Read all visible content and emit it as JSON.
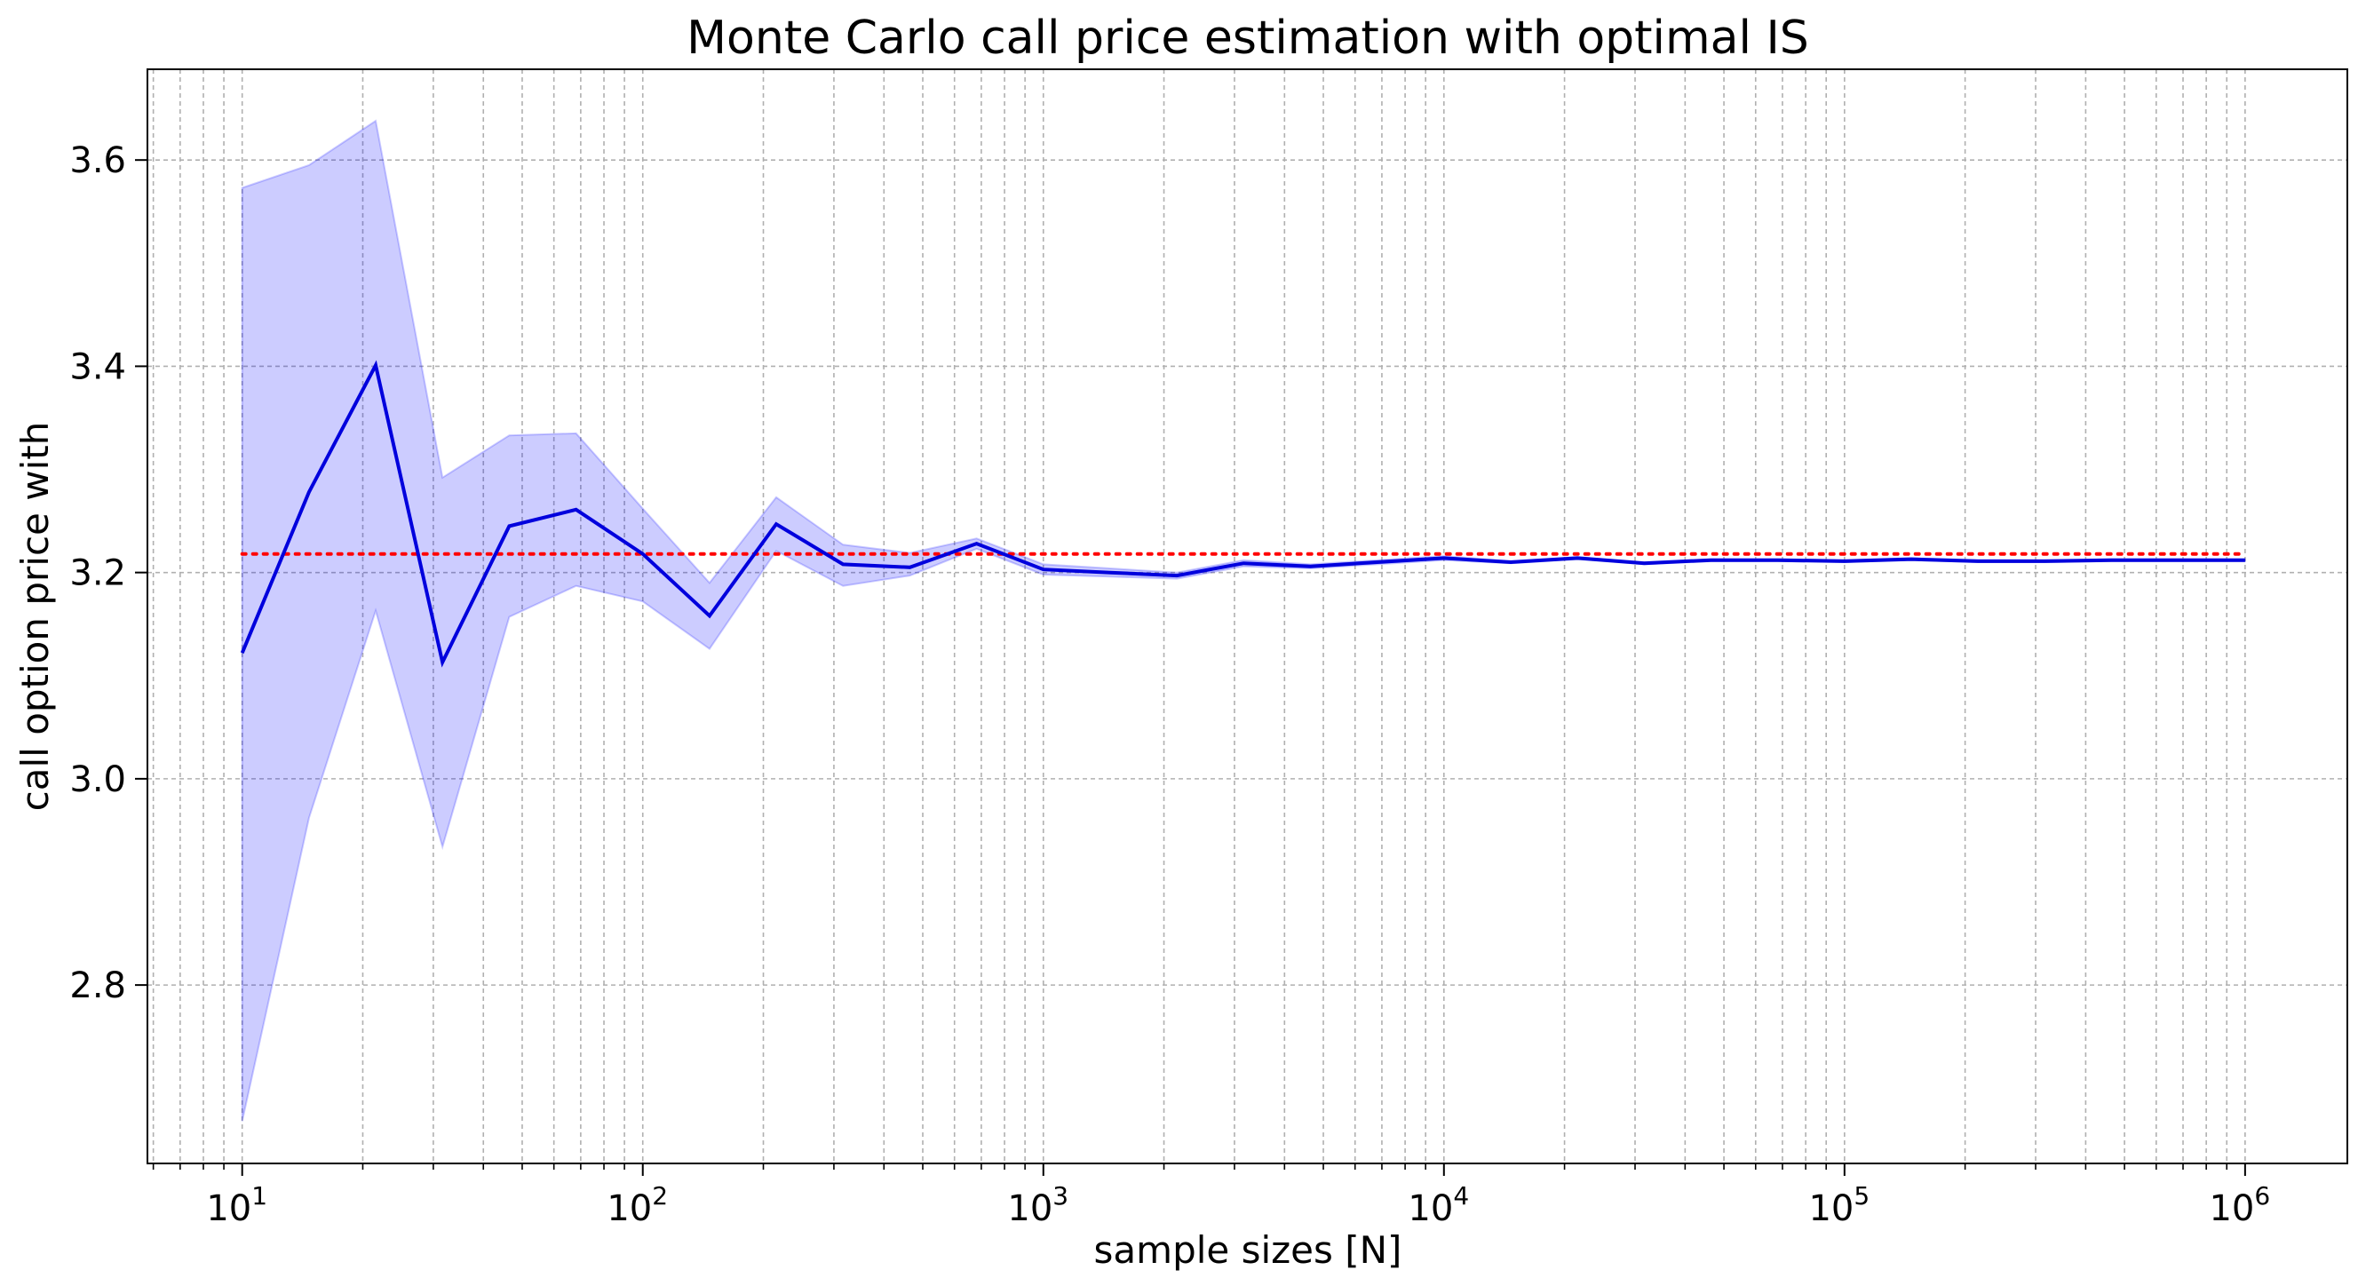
{
  "chart_data": {
    "type": "line",
    "title": "Monte Carlo call price estimation with optimal IS",
    "xlabel": "sample sizes [N]",
    "ylabel": "call option price with",
    "xscale": "log",
    "xlim": [
      5.8,
      1800000
    ],
    "ylim": [
      2.627,
      3.688
    ],
    "grid": true,
    "x_ticks": [
      {
        "base": "10",
        "exp": "1",
        "value": 10
      },
      {
        "base": "10",
        "exp": "2",
        "value": 100
      },
      {
        "base": "10",
        "exp": "3",
        "value": 1000
      },
      {
        "base": "10",
        "exp": "4",
        "value": 10000
      },
      {
        "base": "10",
        "exp": "5",
        "value": 100000
      },
      {
        "base": "10",
        "exp": "6",
        "value": 1000000
      }
    ],
    "y_ticks": [
      "2.8",
      "3.0",
      "3.2",
      "3.4",
      "3.6"
    ],
    "x": [
      10,
      14.68,
      21.54,
      31.62,
      46.42,
      68.13,
      100,
      146.8,
      215.4,
      316.2,
      464.2,
      681.3,
      1000,
      1468,
      2154,
      3162,
      4642,
      6813,
      10000,
      14680,
      21540,
      31620,
      46420,
      68130,
      100000,
      146800,
      215400,
      316200,
      464200,
      681300,
      1000000
    ],
    "series": [
      {
        "role": "estimate",
        "color": "#0000dd",
        "values": [
          3.122,
          3.278,
          3.401,
          3.113,
          3.245,
          3.261,
          3.218,
          3.158,
          3.247,
          3.208,
          3.205,
          3.228,
          3.203,
          3.2,
          3.197,
          3.209,
          3.206,
          3.21,
          3.214,
          3.21,
          3.214,
          3.209,
          3.212,
          3.212,
          3.211,
          3.213,
          3.211,
          3.211,
          3.212,
          3.212,
          3.212
        ]
      },
      {
        "role": "band-upper",
        "color": "#ccccff",
        "values": [
          3.573,
          3.595,
          3.638,
          3.292,
          3.333,
          3.335,
          3.262,
          3.19,
          3.273,
          3.227,
          3.219,
          3.233,
          3.208,
          3.204,
          3.2,
          3.212,
          3.208,
          3.212,
          3.216,
          3.211,
          3.215,
          3.21,
          3.213,
          3.213,
          3.212,
          3.214,
          3.212,
          3.212,
          3.213,
          3.213,
          3.213
        ]
      },
      {
        "role": "band-lower",
        "color": "#ccccff",
        "values": [
          2.668,
          2.962,
          3.163,
          2.934,
          3.157,
          3.187,
          3.172,
          3.126,
          3.221,
          3.187,
          3.197,
          3.223,
          3.198,
          3.196,
          3.194,
          3.206,
          3.204,
          3.208,
          3.212,
          3.209,
          3.213,
          3.208,
          3.211,
          3.211,
          3.21,
          3.212,
          3.21,
          3.21,
          3.211,
          3.211,
          3.211
        ]
      },
      {
        "role": "reference",
        "color": "#ff0000",
        "value": 3.218
      }
    ]
  }
}
